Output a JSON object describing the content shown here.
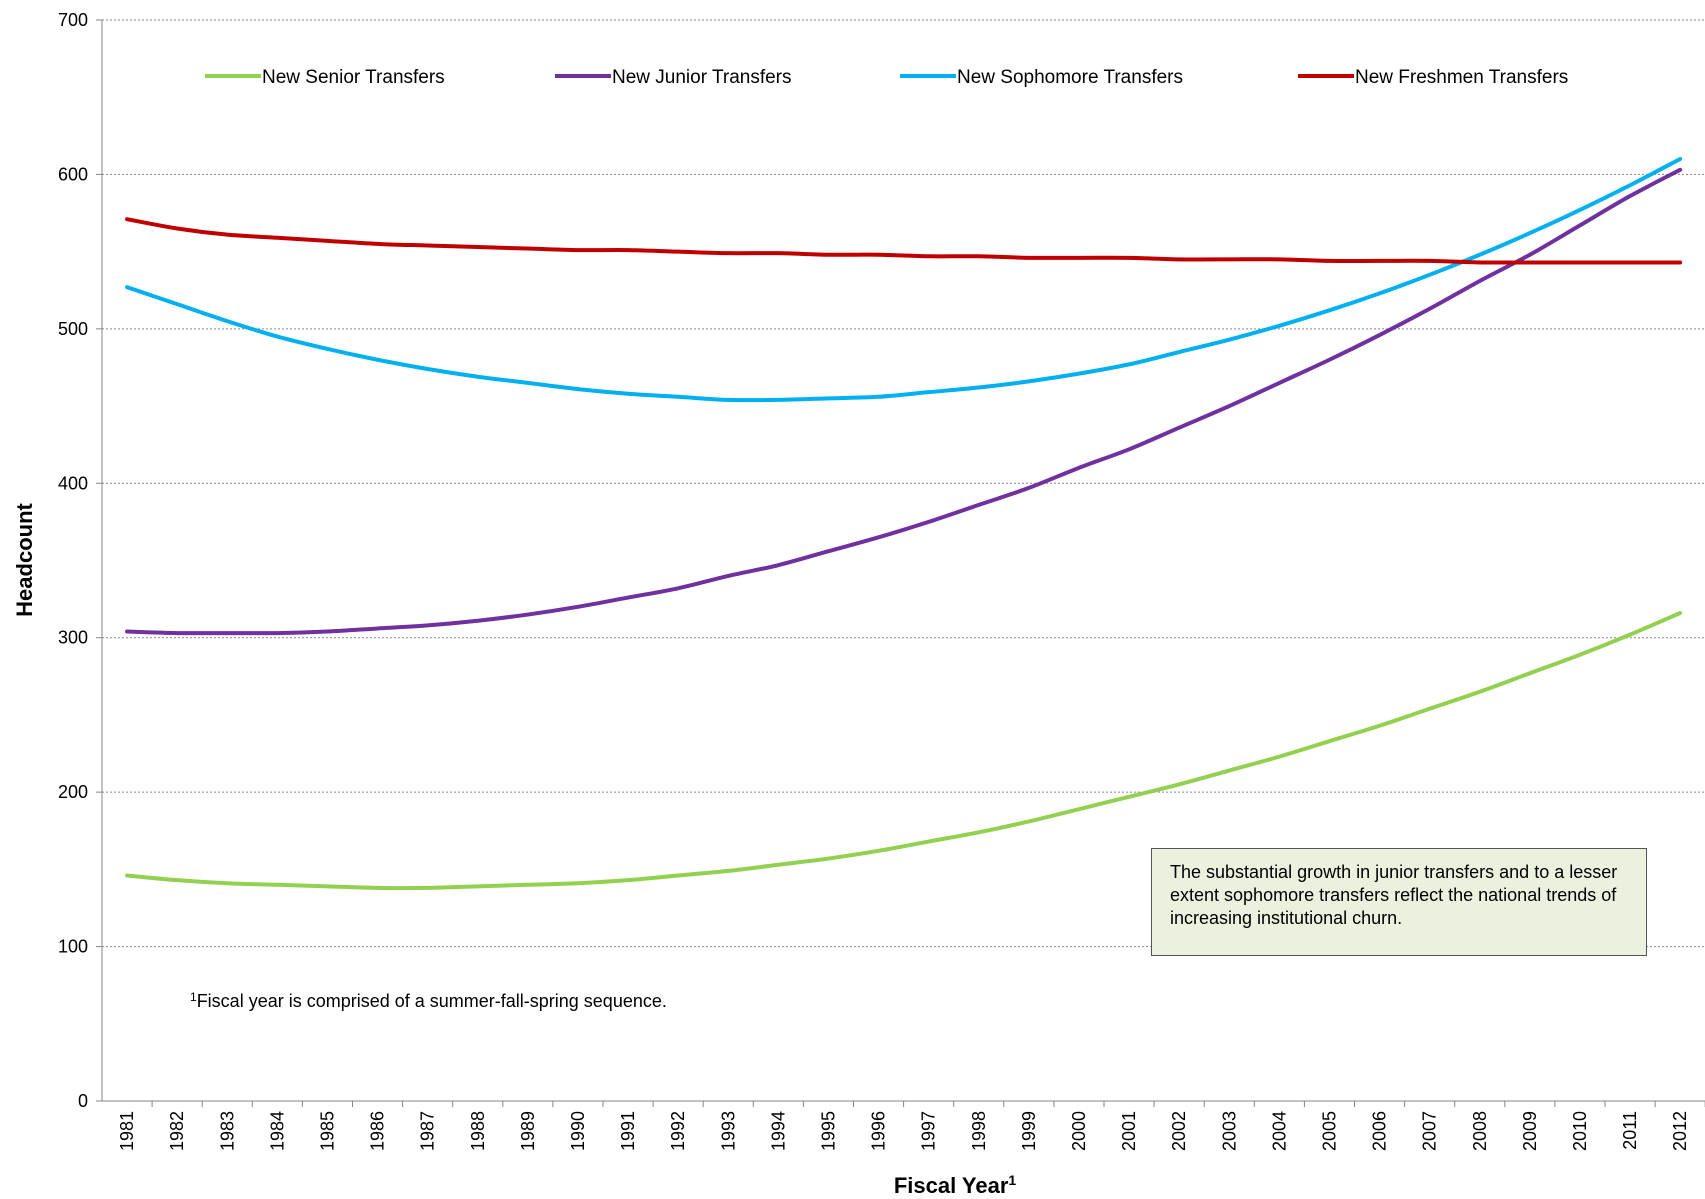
{
  "chart_data": {
    "type": "line",
    "title": "",
    "xlabel": "Fiscal Year",
    "xlabel_superscript": "1",
    "ylabel": "Headcount",
    "ylim": [
      0,
      700
    ],
    "yticks": [
      0,
      100,
      200,
      300,
      400,
      500,
      600,
      700
    ],
    "grid": "horizontal dotted",
    "legend_position": "top",
    "categories": [
      "1981",
      "1982",
      "1983",
      "1984",
      "1985",
      "1986",
      "1987",
      "1988",
      "1989",
      "1990",
      "1991",
      "1992",
      "1993",
      "1994",
      "1995",
      "1996",
      "1997",
      "1998",
      "1999",
      "2000",
      "2001",
      "2002",
      "2003",
      "2004",
      "2005",
      "2006",
      "2007",
      "2008",
      "2009",
      "2010",
      "2011",
      "2012"
    ],
    "series": [
      {
        "name": "New Senior Transfers",
        "color": "#92d050",
        "values": [
          146,
          143,
          141,
          140,
          139,
          138,
          138,
          139,
          140,
          141,
          143,
          146,
          149,
          153,
          157,
          162,
          168,
          174,
          181,
          189,
          197,
          205,
          214,
          223,
          233,
          243,
          254,
          265,
          277,
          289,
          302,
          316
        ]
      },
      {
        "name": "New Junior Transfers",
        "color": "#7030a0",
        "values": [
          304,
          303,
          303,
          303,
          304,
          306,
          308,
          311,
          315,
          320,
          326,
          332,
          340,
          347,
          356,
          365,
          375,
          386,
          397,
          410,
          422,
          436,
          450,
          465,
          480,
          496,
          513,
          531,
          548,
          567,
          586,
          603
        ]
      },
      {
        "name": "New Sophomore Transfers",
        "color": "#00b0f0",
        "values": [
          527,
          516,
          505,
          495,
          487,
          480,
          474,
          469,
          465,
          461,
          458,
          456,
          454,
          454,
          455,
          456,
          459,
          462,
          466,
          471,
          477,
          485,
          493,
          502,
          512,
          523,
          535,
          548,
          562,
          577,
          593,
          610
        ]
      },
      {
        "name": "New Freshmen Transfers",
        "color": "#c00000",
        "values": [
          571,
          565,
          561,
          559,
          557,
          555,
          554,
          553,
          552,
          551,
          551,
          550,
          549,
          549,
          548,
          548,
          547,
          547,
          546,
          546,
          546,
          545,
          545,
          545,
          544,
          544,
          544,
          543,
          543,
          543,
          543,
          543
        ]
      }
    ],
    "annotations": {
      "callout": "The substantial growth in junior transfers and to a lesser extent sophomore transfers reflect the national trends of increasing institutional churn.",
      "footnote_marker": "1",
      "footnote": "Fiscal year is comprised of a summer-fall-spring sequence."
    }
  }
}
